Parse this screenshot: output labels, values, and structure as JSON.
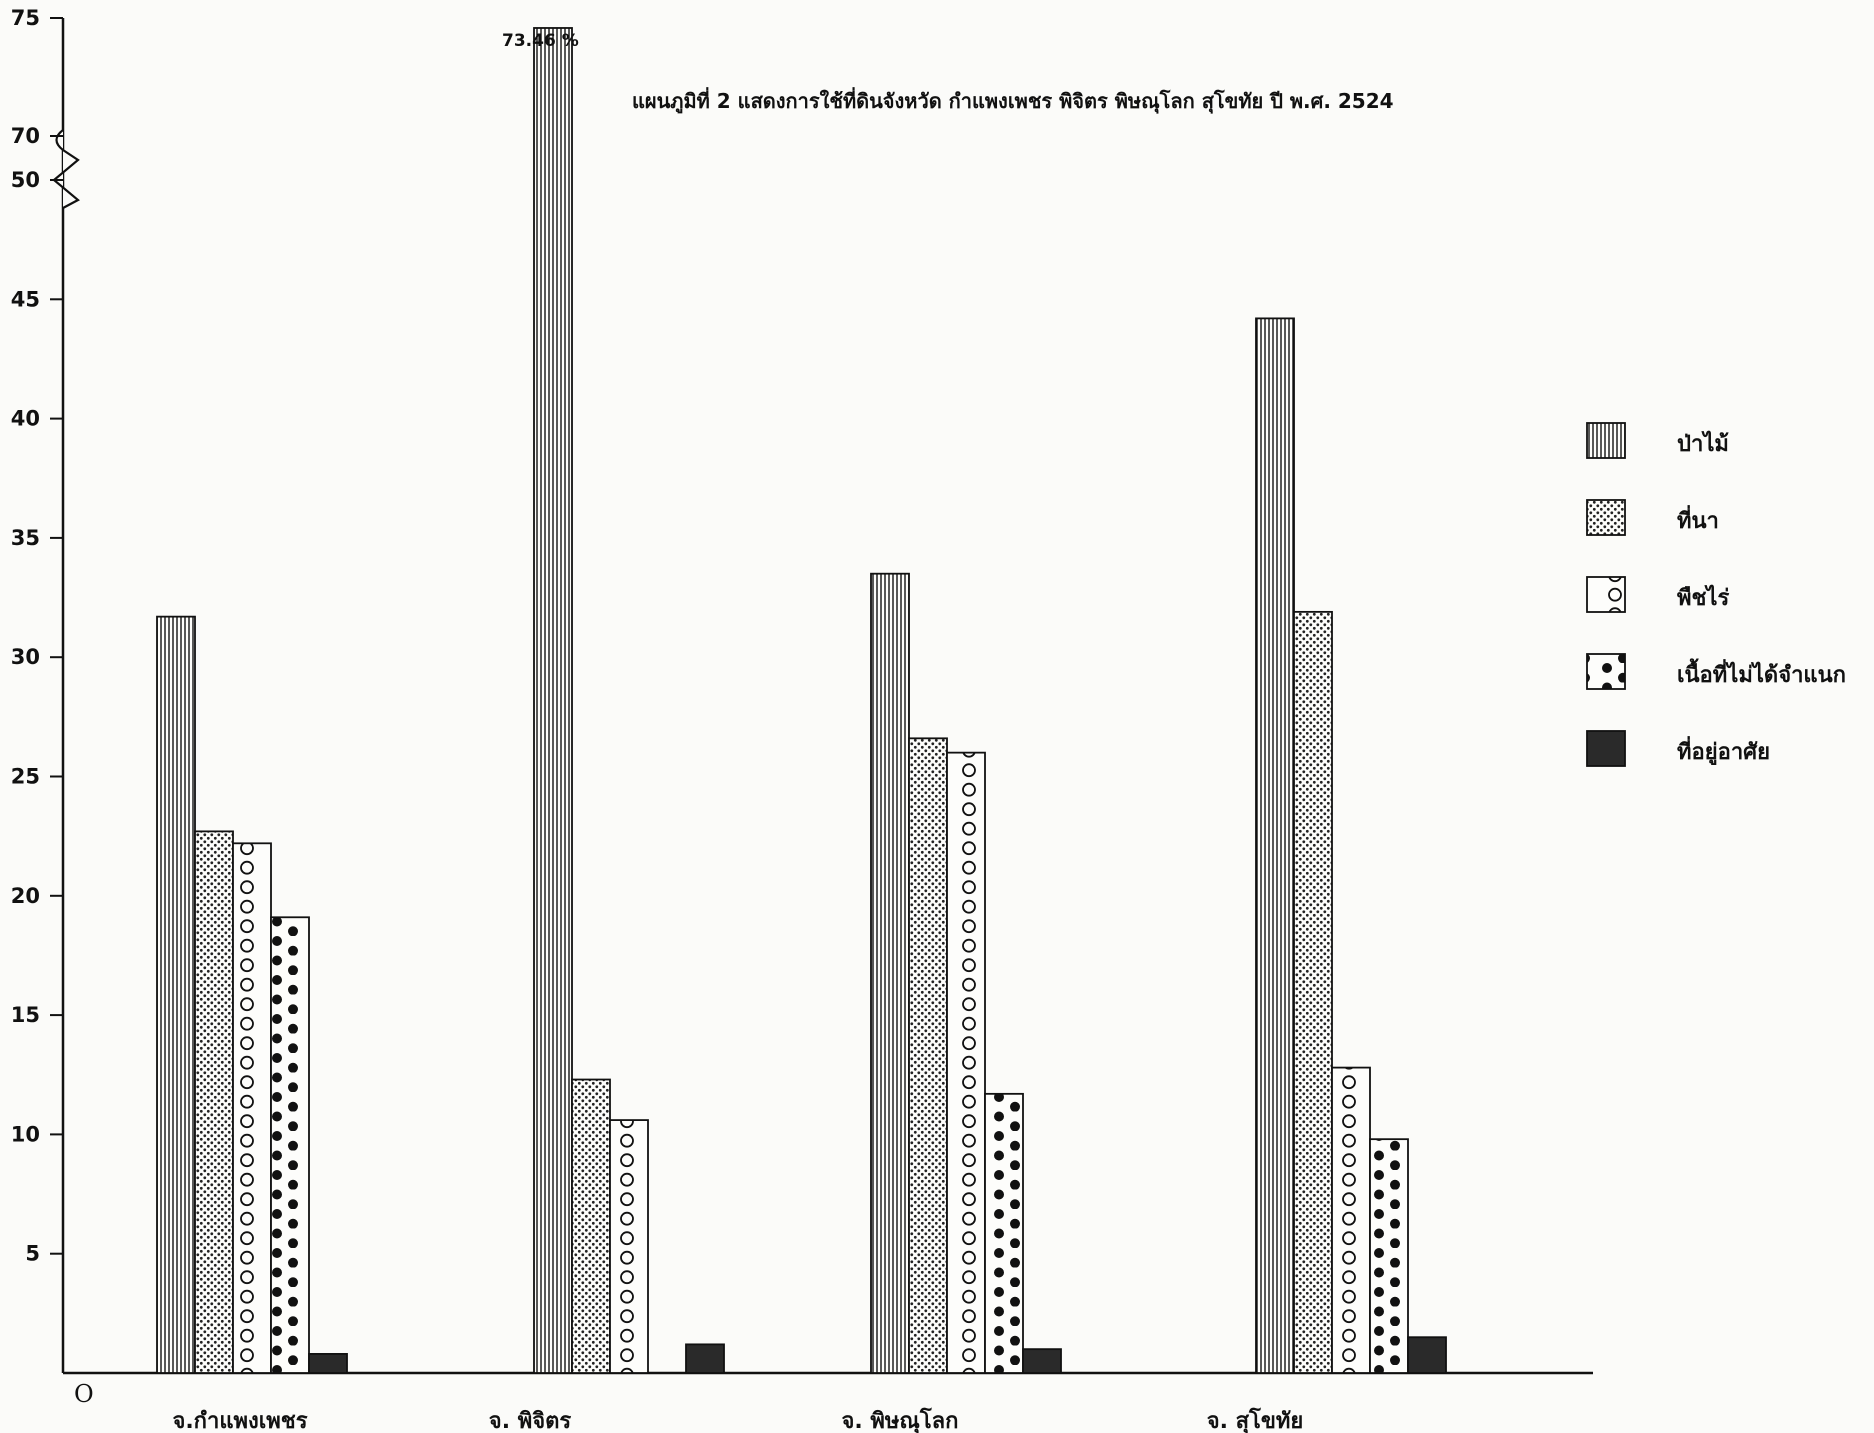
{
  "chart_data": {
    "type": "bar",
    "title": "แผนภูมิที่ 2  แสดงการใช้ที่ดินจังหวัด  กำแพงเพชร  พิจิตร  พิษณุโลก  สุโขทัย  ปี พ.ศ. 2524",
    "origin_label": "O",
    "categories": [
      "จ.กำแพงเพชร",
      "จ. พิจิตร",
      "จ. พิษณุโลก",
      "จ. สุโขทัย"
    ],
    "series": [
      {
        "name": "ป่าไม้",
        "pattern": "vertical-stripes",
        "values": [
          31.7,
          73.46,
          33.5,
          44.2
        ]
      },
      {
        "name": "ที่นา",
        "pattern": "stipple",
        "values": [
          22.7,
          12.3,
          26.6,
          31.9
        ]
      },
      {
        "name": "พืชไร่",
        "pattern": "open-circles",
        "values": [
          22.2,
          10.6,
          26.0,
          12.8
        ]
      },
      {
        "name": "เนื้อที่ไม่ได้จำแนก",
        "pattern": "filled-dots",
        "values": [
          19.1,
          0,
          11.7,
          9.8
        ]
      },
      {
        "name": "ที่อยู่อาศัย",
        "pattern": "solid-dark",
        "values": [
          0.8,
          1.2,
          1.0,
          1.5
        ]
      }
    ],
    "y_ticks": [
      5,
      10,
      15,
      20,
      25,
      30,
      35,
      40,
      45,
      50,
      70,
      75
    ],
    "y_break": "between 50 and 70",
    "ylim": [
      0,
      75
    ],
    "annotation": "73.46 %",
    "legend_position": "right",
    "grid": false
  }
}
